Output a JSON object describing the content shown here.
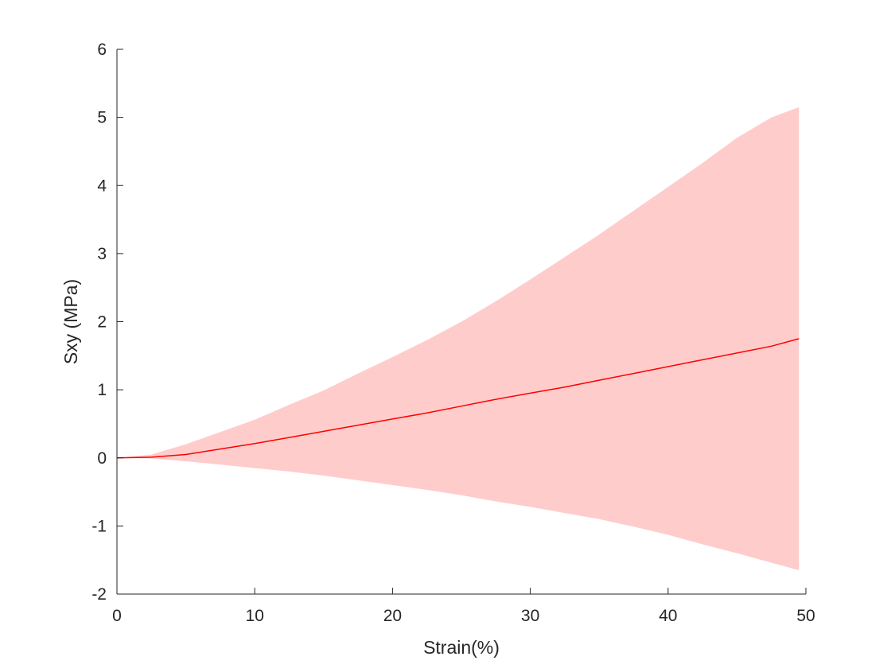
{
  "chart_data": {
    "type": "area",
    "title": "",
    "xlabel": "Strain(%)",
    "ylabel": "Sxy (MPa)",
    "xlim": [
      0,
      50
    ],
    "ylim": [
      -2,
      6
    ],
    "xticks": [
      0,
      10,
      20,
      30,
      40,
      50
    ],
    "yticks": [
      -2,
      -1,
      0,
      1,
      2,
      3,
      4,
      5,
      6
    ],
    "grid": false,
    "legend": "none",
    "colors": {
      "mean_line": "#ff0000",
      "band_fill": "#ffcccc",
      "axis": "#262626"
    },
    "x": [
      0,
      2.5,
      5,
      7.5,
      10,
      12.5,
      15,
      17.5,
      20,
      22.5,
      25,
      27.5,
      30,
      32.5,
      35,
      37.5,
      40,
      42.5,
      45,
      47.5,
      49.5
    ],
    "series": [
      {
        "role": "mean",
        "values": [
          0,
          0.01,
          0.05,
          0.13,
          0.21,
          0.3,
          0.39,
          0.48,
          0.57,
          0.66,
          0.76,
          0.86,
          0.95,
          1.04,
          1.14,
          1.24,
          1.34,
          1.44,
          1.54,
          1.64,
          1.75
        ]
      },
      {
        "role": "upper",
        "values": [
          0,
          0.05,
          0.2,
          0.38,
          0.56,
          0.78,
          0.99,
          1.24,
          1.48,
          1.73,
          2.0,
          2.3,
          2.62,
          2.95,
          3.28,
          3.63,
          3.98,
          4.33,
          4.7,
          5.0,
          5.15
        ]
      },
      {
        "role": "lower",
        "values": [
          0,
          -0.01,
          -0.05,
          -0.1,
          -0.15,
          -0.2,
          -0.26,
          -0.33,
          -0.4,
          -0.47,
          -0.55,
          -0.64,
          -0.72,
          -0.81,
          -0.9,
          -1.01,
          -1.13,
          -1.27,
          -1.4,
          -1.54,
          -1.65
        ]
      }
    ]
  }
}
